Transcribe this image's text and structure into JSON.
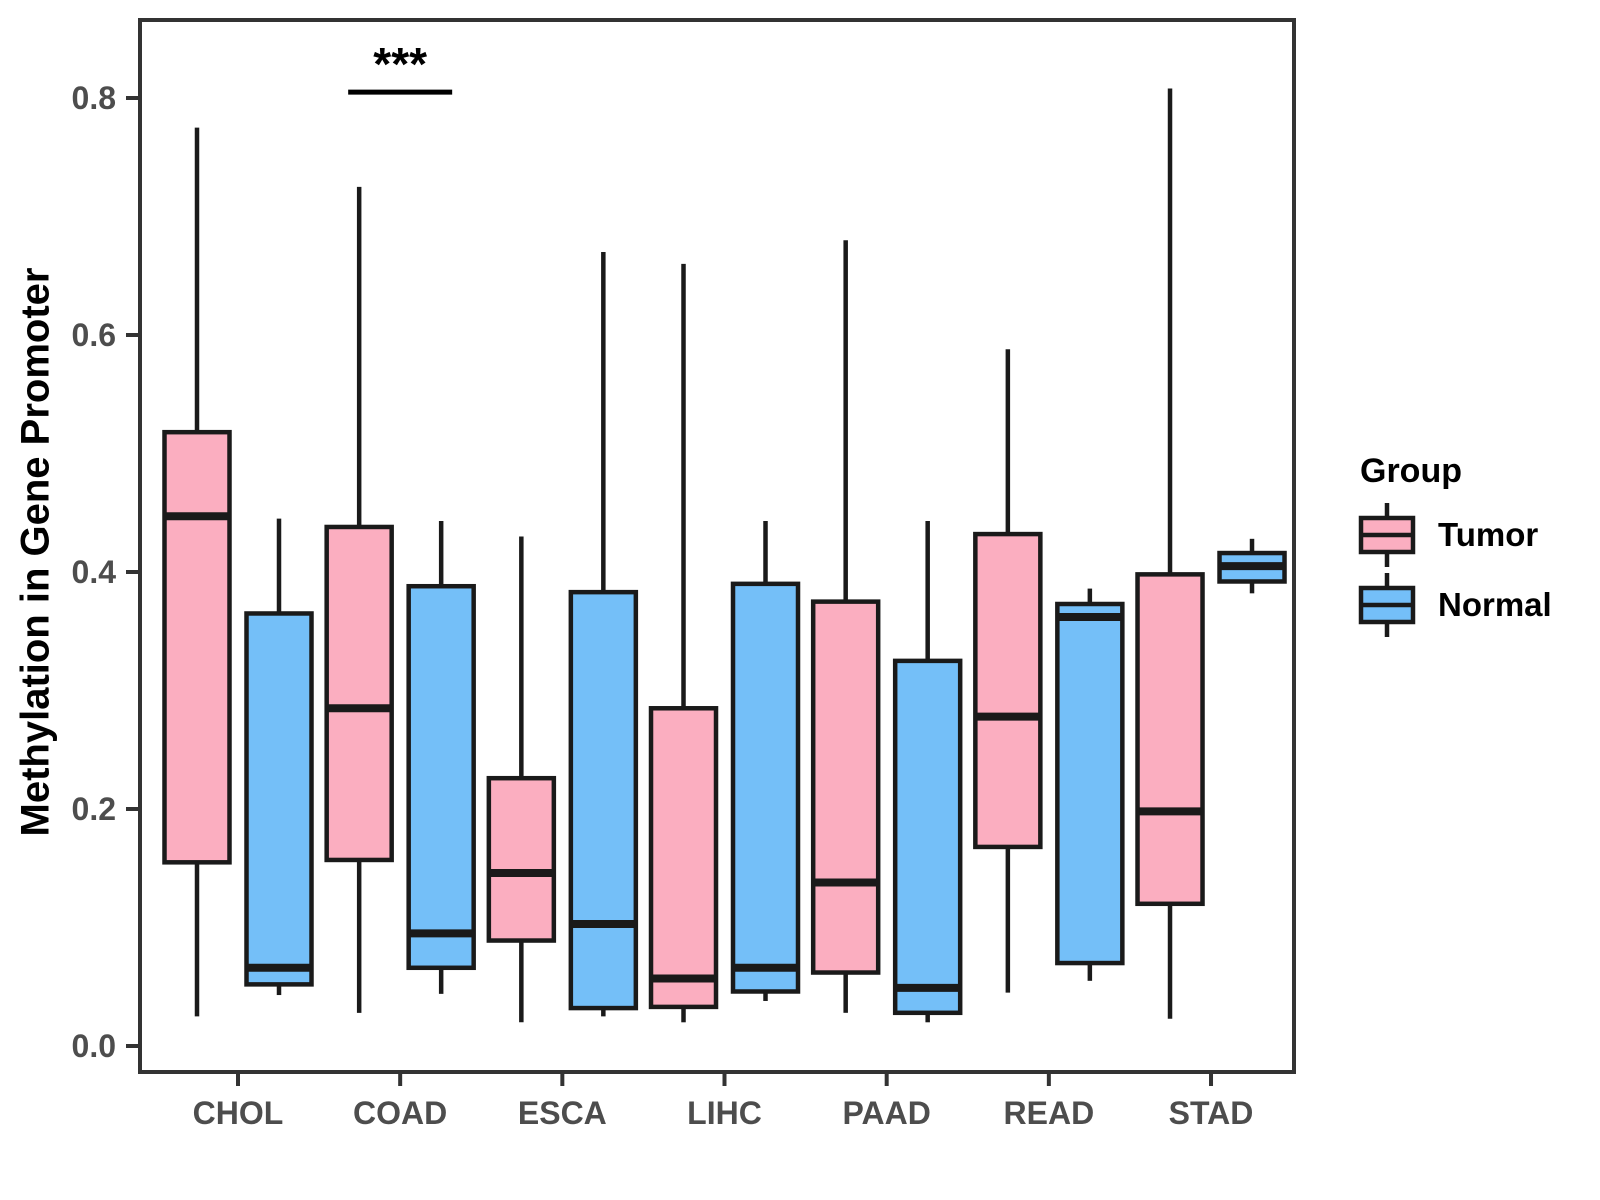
{
  "chart_data": {
    "type": "boxplot",
    "title": "",
    "xlabel": "",
    "ylabel": "Methylation in Gene Promoter",
    "categories": [
      "CHOL",
      "COAD",
      "ESCA",
      "LIHC",
      "PAAD",
      "READ",
      "STAD"
    ],
    "y_ticks": [
      {
        "label": "0.0",
        "value": 0.0
      },
      {
        "label": "0.2",
        "value": 0.2
      },
      {
        "label": "0.4",
        "value": 0.4
      },
      {
        "label": "0.6",
        "value": 0.6
      },
      {
        "label": "0.8",
        "value": 0.8
      }
    ],
    "ylim": [
      -0.022,
      0.866
    ],
    "grid": false,
    "legend_position": "right",
    "series": [
      {
        "name": "Tumor",
        "color": "#FBAEC0",
        "boxes": [
          {
            "min": 0.025,
            "q1": 0.155,
            "median": 0.447,
            "q3": 0.518,
            "max": 0.775
          },
          {
            "min": 0.028,
            "q1": 0.157,
            "median": 0.285,
            "q3": 0.438,
            "max": 0.725
          },
          {
            "min": 0.02,
            "q1": 0.089,
            "median": 0.146,
            "q3": 0.226,
            "max": 0.43
          },
          {
            "min": 0.02,
            "q1": 0.033,
            "median": 0.057,
            "q3": 0.285,
            "max": 0.66
          },
          {
            "min": 0.028,
            "q1": 0.062,
            "median": 0.138,
            "q3": 0.375,
            "max": 0.68
          },
          {
            "min": 0.045,
            "q1": 0.168,
            "median": 0.278,
            "q3": 0.432,
            "max": 0.588
          },
          {
            "min": 0.023,
            "q1": 0.12,
            "median": 0.198,
            "q3": 0.398,
            "max": 0.808
          }
        ]
      },
      {
        "name": "Normal",
        "color": "#74BFF8",
        "boxes": [
          {
            "min": 0.043,
            "q1": 0.052,
            "median": 0.066,
            "q3": 0.365,
            "max": 0.445
          },
          {
            "min": 0.044,
            "q1": 0.066,
            "median": 0.095,
            "q3": 0.388,
            "max": 0.443
          },
          {
            "min": 0.025,
            "q1": 0.032,
            "median": 0.103,
            "q3": 0.383,
            "max": 0.67
          },
          {
            "min": 0.038,
            "q1": 0.046,
            "median": 0.066,
            "q3": 0.39,
            "max": 0.443
          },
          {
            "min": 0.02,
            "q1": 0.028,
            "median": 0.049,
            "q3": 0.325,
            "max": 0.443
          },
          {
            "min": 0.055,
            "q1": 0.07,
            "median": 0.362,
            "q3": 0.373,
            "max": 0.386
          },
          {
            "min": 0.382,
            "q1": 0.392,
            "median": 0.405,
            "q3": 0.416,
            "max": 0.428
          }
        ]
      }
    ],
    "annotation": {
      "text": "***",
      "category": "COAD",
      "bar_y": 0.805
    }
  },
  "legend": {
    "title": "Group",
    "items": [
      {
        "label": "Tumor",
        "color": "#FBAEC0"
      },
      {
        "label": "Normal",
        "color": "#74BFF8"
      }
    ]
  },
  "styles": {
    "box_stroke": "#1A1A1A",
    "panel_stroke": "#333333",
    "tick_color": "#333333",
    "axis_text_color": "#4D4D4D",
    "background": "#FFFFFF"
  }
}
